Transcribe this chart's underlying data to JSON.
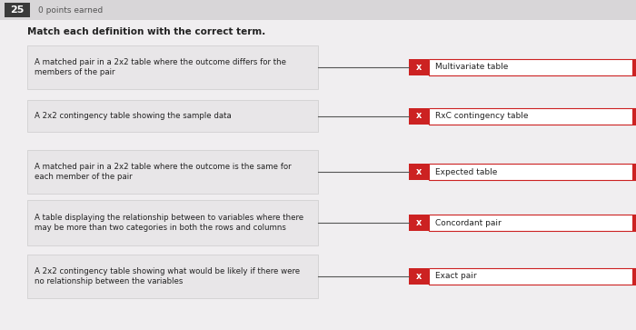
{
  "question_number": "25",
  "points_label": "0 points earned",
  "instruction": "Match each definition with the correct term.",
  "background_color": "#f0eef0",
  "header_bg": "#3a3a3a",
  "left_box_bg": "#e8e6e8",
  "left_box_border": "#cccccc",
  "right_box_bg": "#cc2222",
  "right_text_color": "#ffffff",
  "line_color": "#555555",
  "right_label_color": "#222222",
  "definitions": [
    "A matched pair in a 2x2 table where the outcome differs for the\nmembers of the pair",
    "A 2x2 contingency table showing the sample data",
    "A matched pair in a 2x2 table where the outcome is the same for\neach member of the pair",
    "A table displaying the relationship between to variables where there\nmay be more than two categories in both the rows and columns",
    "A 2x2 contingency table showing what would be likely if there were\nno relationship between the variables"
  ],
  "terms": [
    "Multivariate table",
    "RxC contingency table",
    "Expected table",
    "Concordant pair",
    "Exact pair"
  ],
  "x_mark": "x"
}
